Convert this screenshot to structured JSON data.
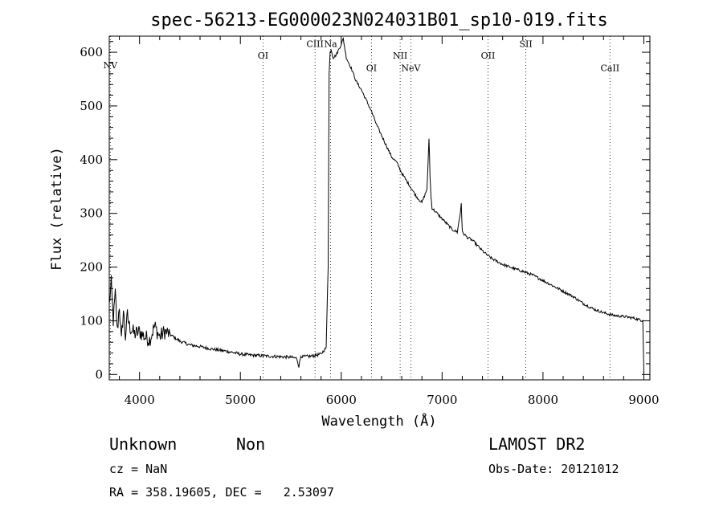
{
  "chart_data": {
    "type": "line",
    "title": "spec-56213-EG000023N024031B01_sp10-019.fits",
    "xlabel": "Wavelength (Å)",
    "ylabel": "Flux (relative)",
    "xlim": [
      3700,
      9060
    ],
    "ylim": [
      -10,
      630
    ],
    "xticks": [
      4000,
      5000,
      6000,
      7000,
      8000,
      9000
    ],
    "xtick_labels": [
      "4000",
      "5000",
      "6000",
      "7000",
      "8000",
      "9000"
    ],
    "yticks": [
      0,
      100,
      200,
      300,
      400,
      500,
      600
    ],
    "ytick_labels": [
      "0",
      "100",
      "200",
      "300",
      "400",
      "500",
      "600"
    ],
    "grid": false,
    "line_color": "#000000",
    "series": [
      {
        "x": [
          3700,
          3720,
          3740,
          3760,
          3780,
          3800,
          3820,
          3840,
          3860,
          3880,
          3900,
          3950,
          4000,
          4050,
          4100,
          4150,
          4200,
          4250,
          4300,
          4400,
          4500,
          4600,
          4700,
          4800,
          4900,
          5000,
          5100,
          5200,
          5300,
          5400,
          5500,
          5560,
          5580,
          5600,
          5620,
          5700,
          5800,
          5850,
          5870,
          5880,
          5890,
          5900,
          5920,
          5950,
          6000,
          6020,
          6050,
          6100,
          6150,
          6200,
          6250,
          6300,
          6350,
          6400,
          6450,
          6500,
          6550,
          6600,
          6650,
          6700,
          6750,
          6800,
          6850,
          6870,
          6880,
          6890,
          6900,
          6950,
          7000,
          7050,
          7100,
          7150,
          7180,
          7190,
          7200,
          7250,
          7300,
          7350,
          7400,
          7450,
          7500,
          7600,
          7700,
          7800,
          7900,
          8000,
          8100,
          8200,
          8300,
          8400,
          8500,
          8600,
          8700,
          8800,
          8900,
          8990,
          9000
        ],
        "y": [
          130,
          170,
          100,
          150,
          80,
          130,
          60,
          120,
          70,
          110,
          90,
          75,
          80,
          70,
          65,
          90,
          70,
          80,
          75,
          62,
          55,
          52,
          48,
          45,
          42,
          38,
          36,
          35,
          34,
          33,
          32,
          30,
          15,
          35,
          33,
          34,
          38,
          50,
          200,
          560,
          600,
          605,
          590,
          595,
          615,
          625,
          590,
          570,
          545,
          530,
          510,
          490,
          465,
          445,
          425,
          405,
          395,
          375,
          360,
          345,
          330,
          320,
          345,
          440,
          370,
          330,
          310,
          300,
          290,
          280,
          270,
          265,
          300,
          320,
          265,
          255,
          250,
          240,
          230,
          222,
          215,
          205,
          198,
          192,
          185,
          175,
          165,
          155,
          145,
          132,
          122,
          115,
          110,
          108,
          105,
          100,
          5
        ]
      }
    ],
    "line_ids": [
      {
        "label": "NV",
        "x": 3710,
        "label_y": 570
      },
      {
        "label": "OI",
        "x": 5225,
        "label_y": 588
      },
      {
        "label": "CIII",
        "x": 5740,
        "label_y": 610
      },
      {
        "label": "Na",
        "x": 5895,
        "label_y": 610
      },
      {
        "label": "OI",
        "x": 6300,
        "label_y": 565
      },
      {
        "label": "NII",
        "x": 6584,
        "label_y": 588
      },
      {
        "label": "NeV",
        "x": 6690,
        "label_y": 565
      },
      {
        "label": "OII",
        "x": 7455,
        "label_y": 588
      },
      {
        "label": "SII",
        "x": 7830,
        "label_y": 610
      },
      {
        "label": "CaII",
        "x": 8664,
        "label_y": 565
      }
    ]
  },
  "info": {
    "class_label": "Unknown",
    "subclass_label": "Non",
    "cz_text": "cz = NaN",
    "coords_text": "RA = 358.19605, DEC =   2.53097",
    "survey": "LAMOST DR2",
    "obs_date": "Obs-Date: 20121012"
  }
}
